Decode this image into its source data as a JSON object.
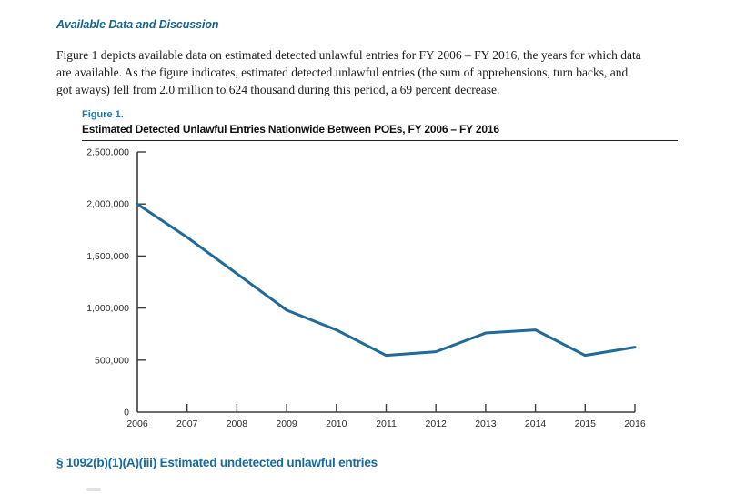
{
  "page": {
    "section_heading": "Available Data and Discussion",
    "paragraph": {
      "lines": [
        "Figure 1 depicts available data on estimated detected unlawful entries for FY 2006 – FY 2016, the years for which data",
        "are available. As the figure indicates, estimated detected unlawful entries (the sum of apprehensions, turn backs, and",
        "got aways) fell from 2.0 million to 624 thousand during this period, a 69 percent decrease."
      ]
    },
    "figure_label": "Figure 1.",
    "figure_title": "Estimated Detected Unlawful Entries Nationwide Between POEs, FY 2006 – FY 2016",
    "next_section_heading": "§ 1092(b)(1)(A)(iii) Estimated undetected unlawful entries"
  },
  "colors": {
    "line_blue": "#1f6a96",
    "axis_gray": "#3c3c3c",
    "heading_blue": "#18648f",
    "figure_label_blue": "#1d7aae",
    "next_heading_blue": "#176a9c"
  },
  "chart_data": {
    "type": "line",
    "title": "Estimated Detected Unlawful Entries Nationwide Between POEs, FY 2006 – FY 2016",
    "x": [
      "2006",
      "2007",
      "2008",
      "2009",
      "2010",
      "2011",
      "2012",
      "2013",
      "2014",
      "2015",
      "2016"
    ],
    "series": [
      {
        "name": "Estimated detected unlawful entries",
        "values": [
          2000000,
          1680000,
          1330000,
          980000,
          790000,
          545000,
          580000,
          760000,
          790000,
          545000,
          624000
        ]
      }
    ],
    "xlabel": "",
    "ylabel": "",
    "ylim": [
      0,
      2500000
    ],
    "ytick_step": 500000,
    "ytick_labels": [
      "0",
      "500,000",
      "1,000,000",
      "1,500,000",
      "2,000,000",
      "2,500,000"
    ],
    "grid": false,
    "legend": "none",
    "notes": "Per body text: fell from 2.0 million (FY 2006) to 624 thousand (FY 2016), a 69 percent decrease."
  }
}
